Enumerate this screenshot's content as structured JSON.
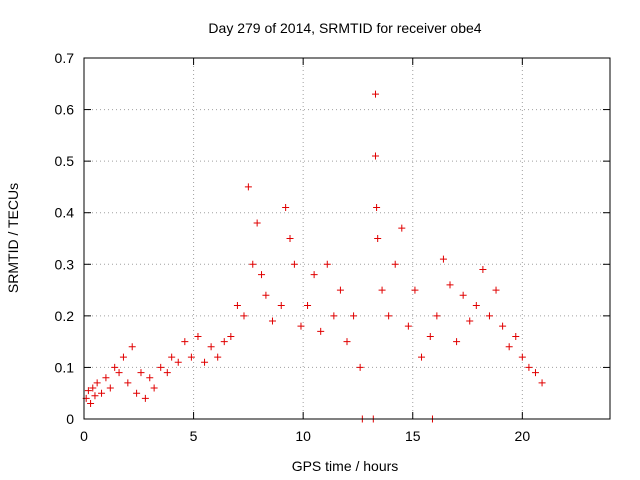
{
  "chart_data": {
    "type": "scatter",
    "title": "Day 279 of 2014, SRMTID for receiver obe4",
    "xlabel": "GPS time / hours",
    "ylabel": "SRMTID / TECUs",
    "xlim": [
      0,
      24
    ],
    "ylim": [
      0,
      0.7
    ],
    "xticks": [
      0,
      5,
      10,
      15,
      20
    ],
    "yticks": [
      0,
      0.1,
      0.2,
      0.3,
      0.4,
      0.5,
      0.6,
      0.7
    ],
    "xtick_labels": [
      "0",
      "5",
      "10",
      "15",
      "20"
    ],
    "ytick_labels": [
      "0",
      "0.1",
      "0.2",
      "0.3",
      "0.4",
      "0.5",
      "0.6",
      "0.7"
    ],
    "grid": true,
    "marker": "plus",
    "color": "#e00000",
    "series": [
      {
        "name": "obe4",
        "points": [
          [
            0.1,
            0.04
          ],
          [
            0.2,
            0.055
          ],
          [
            0.3,
            0.03
          ],
          [
            0.4,
            0.06
          ],
          [
            0.5,
            0.045
          ],
          [
            0.6,
            0.07
          ],
          [
            0.8,
            0.05
          ],
          [
            1.0,
            0.08
          ],
          [
            1.2,
            0.06
          ],
          [
            1.4,
            0.1
          ],
          [
            1.6,
            0.09
          ],
          [
            1.8,
            0.12
          ],
          [
            2.0,
            0.07
          ],
          [
            2.2,
            0.14
          ],
          [
            2.4,
            0.05
          ],
          [
            2.6,
            0.09
          ],
          [
            2.8,
            0.04
          ],
          [
            3.0,
            0.08
          ],
          [
            3.2,
            0.06
          ],
          [
            3.5,
            0.1
          ],
          [
            3.8,
            0.09
          ],
          [
            4.0,
            0.12
          ],
          [
            4.3,
            0.11
          ],
          [
            4.6,
            0.15
          ],
          [
            4.9,
            0.12
          ],
          [
            5.2,
            0.16
          ],
          [
            5.5,
            0.11
          ],
          [
            5.8,
            0.14
          ],
          [
            6.1,
            0.12
          ],
          [
            6.4,
            0.15
          ],
          [
            6.7,
            0.16
          ],
          [
            7.0,
            0.22
          ],
          [
            7.3,
            0.2
          ],
          [
            7.5,
            0.45
          ],
          [
            7.7,
            0.3
          ],
          [
            7.9,
            0.38
          ],
          [
            8.1,
            0.28
          ],
          [
            8.3,
            0.24
          ],
          [
            8.6,
            0.19
          ],
          [
            9.0,
            0.22
          ],
          [
            9.2,
            0.41
          ],
          [
            9.4,
            0.35
          ],
          [
            9.6,
            0.3
          ],
          [
            9.9,
            0.18
          ],
          [
            10.2,
            0.22
          ],
          [
            10.5,
            0.28
          ],
          [
            10.8,
            0.17
          ],
          [
            11.1,
            0.3
          ],
          [
            11.4,
            0.2
          ],
          [
            11.7,
            0.25
          ],
          [
            12.0,
            0.15
          ],
          [
            12.3,
            0.2
          ],
          [
            12.6,
            0.1
          ],
          [
            12.7,
            0.0
          ],
          [
            13.3,
            0.63
          ],
          [
            13.3,
            0.51
          ],
          [
            13.35,
            0.41
          ],
          [
            13.4,
            0.35
          ],
          [
            13.2,
            0.0
          ],
          [
            13.6,
            0.25
          ],
          [
            13.9,
            0.2
          ],
          [
            14.2,
            0.3
          ],
          [
            14.5,
            0.37
          ],
          [
            14.8,
            0.18
          ],
          [
            15.1,
            0.25
          ],
          [
            15.4,
            0.12
          ],
          [
            15.8,
            0.16
          ],
          [
            15.9,
            0.0
          ],
          [
            16.1,
            0.2
          ],
          [
            16.4,
            0.31
          ],
          [
            16.7,
            0.26
          ],
          [
            17.0,
            0.15
          ],
          [
            17.3,
            0.24
          ],
          [
            17.6,
            0.19
          ],
          [
            17.9,
            0.22
          ],
          [
            18.2,
            0.29
          ],
          [
            18.5,
            0.2
          ],
          [
            18.8,
            0.25
          ],
          [
            19.1,
            0.18
          ],
          [
            19.4,
            0.14
          ],
          [
            19.7,
            0.16
          ],
          [
            20.0,
            0.12
          ],
          [
            20.3,
            0.1
          ],
          [
            20.6,
            0.09
          ],
          [
            20.9,
            0.07
          ]
        ]
      }
    ]
  }
}
